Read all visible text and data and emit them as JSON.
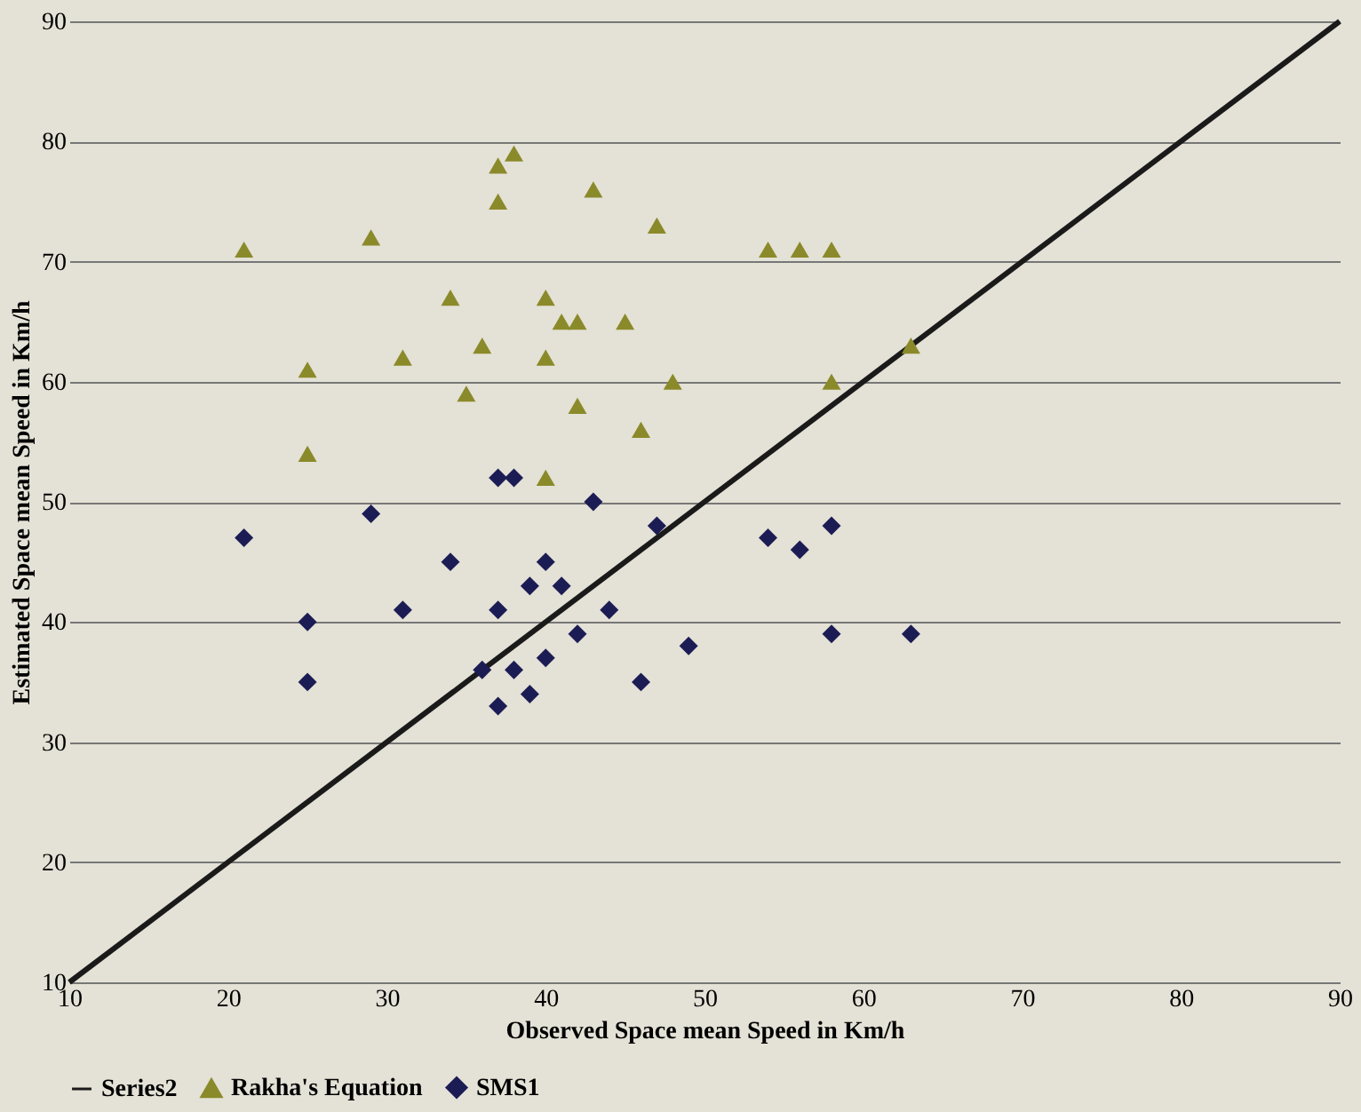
{
  "chart_data": {
    "type": "scatter",
    "xlabel": "Observed Space mean Speed in Km/h",
    "ylabel": "Estimated Space mean Speed in Km/h",
    "xlim": [
      10,
      90
    ],
    "ylim": [
      10,
      90
    ],
    "xticks": [
      10,
      20,
      30,
      40,
      50,
      60,
      70,
      80,
      90
    ],
    "yticks": [
      10,
      20,
      30,
      40,
      50,
      60,
      70,
      80,
      90
    ],
    "grid": "y",
    "legend": "bottom",
    "series": [
      {
        "name": "Series2",
        "type": "line",
        "color": "#1a1a1a",
        "marker": "none",
        "x": [
          10,
          90
        ],
        "values": [
          10,
          90
        ]
      },
      {
        "name": "Rakha's Equation",
        "color": "#8a8a2a",
        "marker": "triangle",
        "x": [
          21,
          29,
          25,
          25,
          31,
          34,
          37,
          38,
          37,
          36,
          35,
          40,
          41,
          42,
          40,
          43,
          45,
          42,
          47,
          46,
          48,
          54,
          56,
          58,
          58,
          63,
          40
        ],
        "values": [
          71,
          72,
          61,
          54,
          62,
          67,
          78,
          79,
          75,
          63,
          59,
          67,
          65,
          65,
          62,
          76,
          65,
          58,
          73,
          56,
          60,
          71,
          71,
          71,
          60,
          63,
          52
        ]
      },
      {
        "name": "SMS1",
        "color": "#1c1c55",
        "marker": "diamond",
        "x": [
          21,
          29,
          25,
          25,
          31,
          34,
          37,
          38,
          43,
          39,
          40,
          37,
          37,
          38,
          40,
          42,
          44,
          41,
          46,
          47,
          49,
          54,
          56,
          58,
          58,
          63,
          36,
          39
        ],
        "values": [
          47,
          49,
          40,
          35,
          41,
          45,
          52,
          52,
          50,
          43,
          45,
          41,
          33,
          36,
          37,
          39,
          41,
          43,
          35,
          48,
          38,
          47,
          46,
          48,
          39,
          39,
          36,
          34
        ]
      }
    ]
  }
}
